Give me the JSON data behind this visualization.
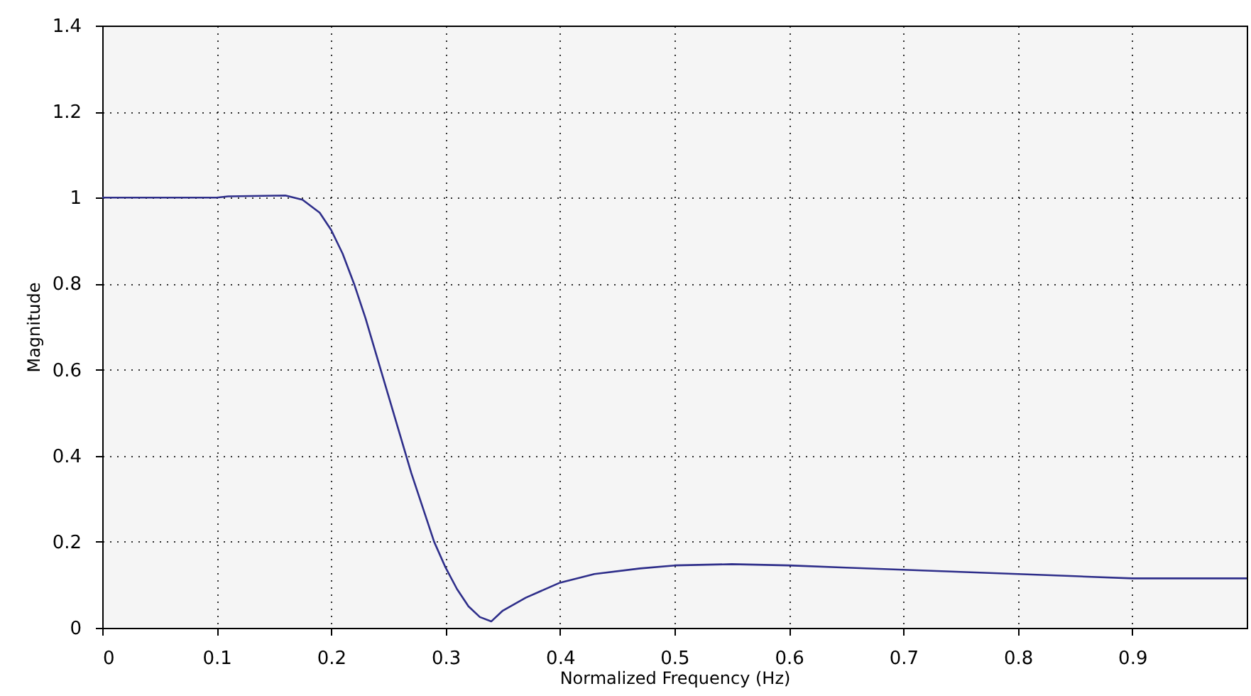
{
  "chart_data": {
    "type": "line",
    "xlabel": "Normalized Frequency (Hz)",
    "ylabel": "Magnitude",
    "xlim": [
      0,
      1
    ],
    "xticks": [
      0,
      0.1,
      0.2,
      0.3,
      0.4,
      0.5,
      0.6,
      0.7,
      0.8,
      0.9
    ],
    "ylim": [
      0,
      1.4
    ],
    "yticks": [
      0,
      0.2,
      0.4,
      0.6,
      0.8,
      1,
      1.2,
      1.4
    ],
    "grid": true,
    "line_style": "solid",
    "series": [
      {
        "color": "#2e2e8a",
        "x": [
          0,
          0.1,
          0.11,
          0.16,
          0.175,
          0.19,
          0.2,
          0.21,
          0.22,
          0.23,
          0.24,
          0.25,
          0.26,
          0.27,
          0.28,
          0.29,
          0.3,
          0.31,
          0.32,
          0.33,
          0.34,
          0.35,
          0.37,
          0.4,
          0.43,
          0.47,
          0.5,
          0.55,
          0.6,
          0.65,
          0.7,
          0.75,
          0.8,
          0.85,
          0.9,
          1.0
        ],
        "values": [
          1.0,
          1.0,
          1.003,
          1.005,
          0.995,
          0.965,
          0.925,
          0.87,
          0.8,
          0.72,
          0.63,
          0.54,
          0.45,
          0.36,
          0.28,
          0.2,
          0.14,
          0.09,
          0.05,
          0.025,
          0.015,
          0.04,
          0.07,
          0.105,
          0.125,
          0.138,
          0.145,
          0.148,
          0.145,
          0.14,
          0.135,
          0.13,
          0.125,
          0.12,
          0.115,
          0.115
        ]
      }
    ]
  }
}
